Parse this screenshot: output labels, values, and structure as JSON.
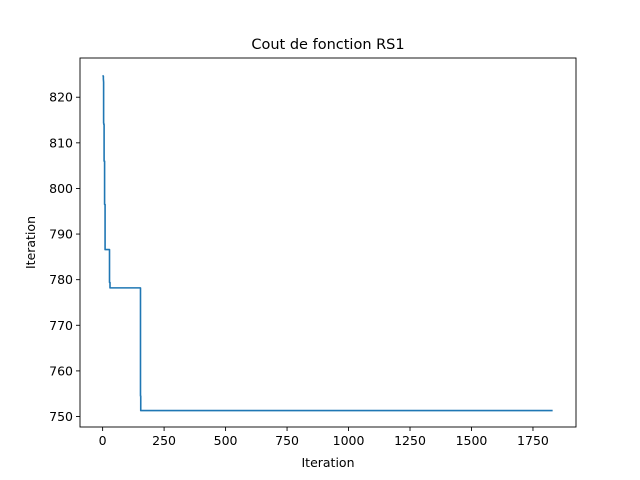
{
  "chart_data": {
    "type": "line",
    "title": "Cout de fonction RS1",
    "xlabel": "Iteration",
    "ylabel": "Iteration",
    "xlim": [
      -92,
      1925
    ],
    "ylim": [
      747.7,
      828.6
    ],
    "x_ticks": [
      0,
      250,
      500,
      750,
      1000,
      1250,
      1500,
      1750
    ],
    "y_ticks": [
      750,
      760,
      770,
      780,
      790,
      800,
      810,
      820
    ],
    "grid": false,
    "series_color": "#1f77b4",
    "series": [
      {
        "x": [
          0,
          3,
          3,
          4,
          4,
          5,
          5,
          6,
          6,
          8,
          8,
          10,
          10,
          28,
          28,
          30,
          30,
          32,
          32,
          154,
          154,
          155,
          155,
          156,
          156,
          1830
        ],
        "y": [
          824.8,
          824.6,
          824.0,
          823.3,
          814.3,
          814.3,
          814.0,
          814.0,
          806.0,
          806.0,
          796.5,
          796.5,
          786.6,
          786.6,
          779.4,
          779.4,
          778.2,
          778.2,
          778.2,
          778.2,
          754.5,
          754.5,
          751.3,
          751.3,
          751.3,
          751.3
        ]
      }
    ]
  }
}
